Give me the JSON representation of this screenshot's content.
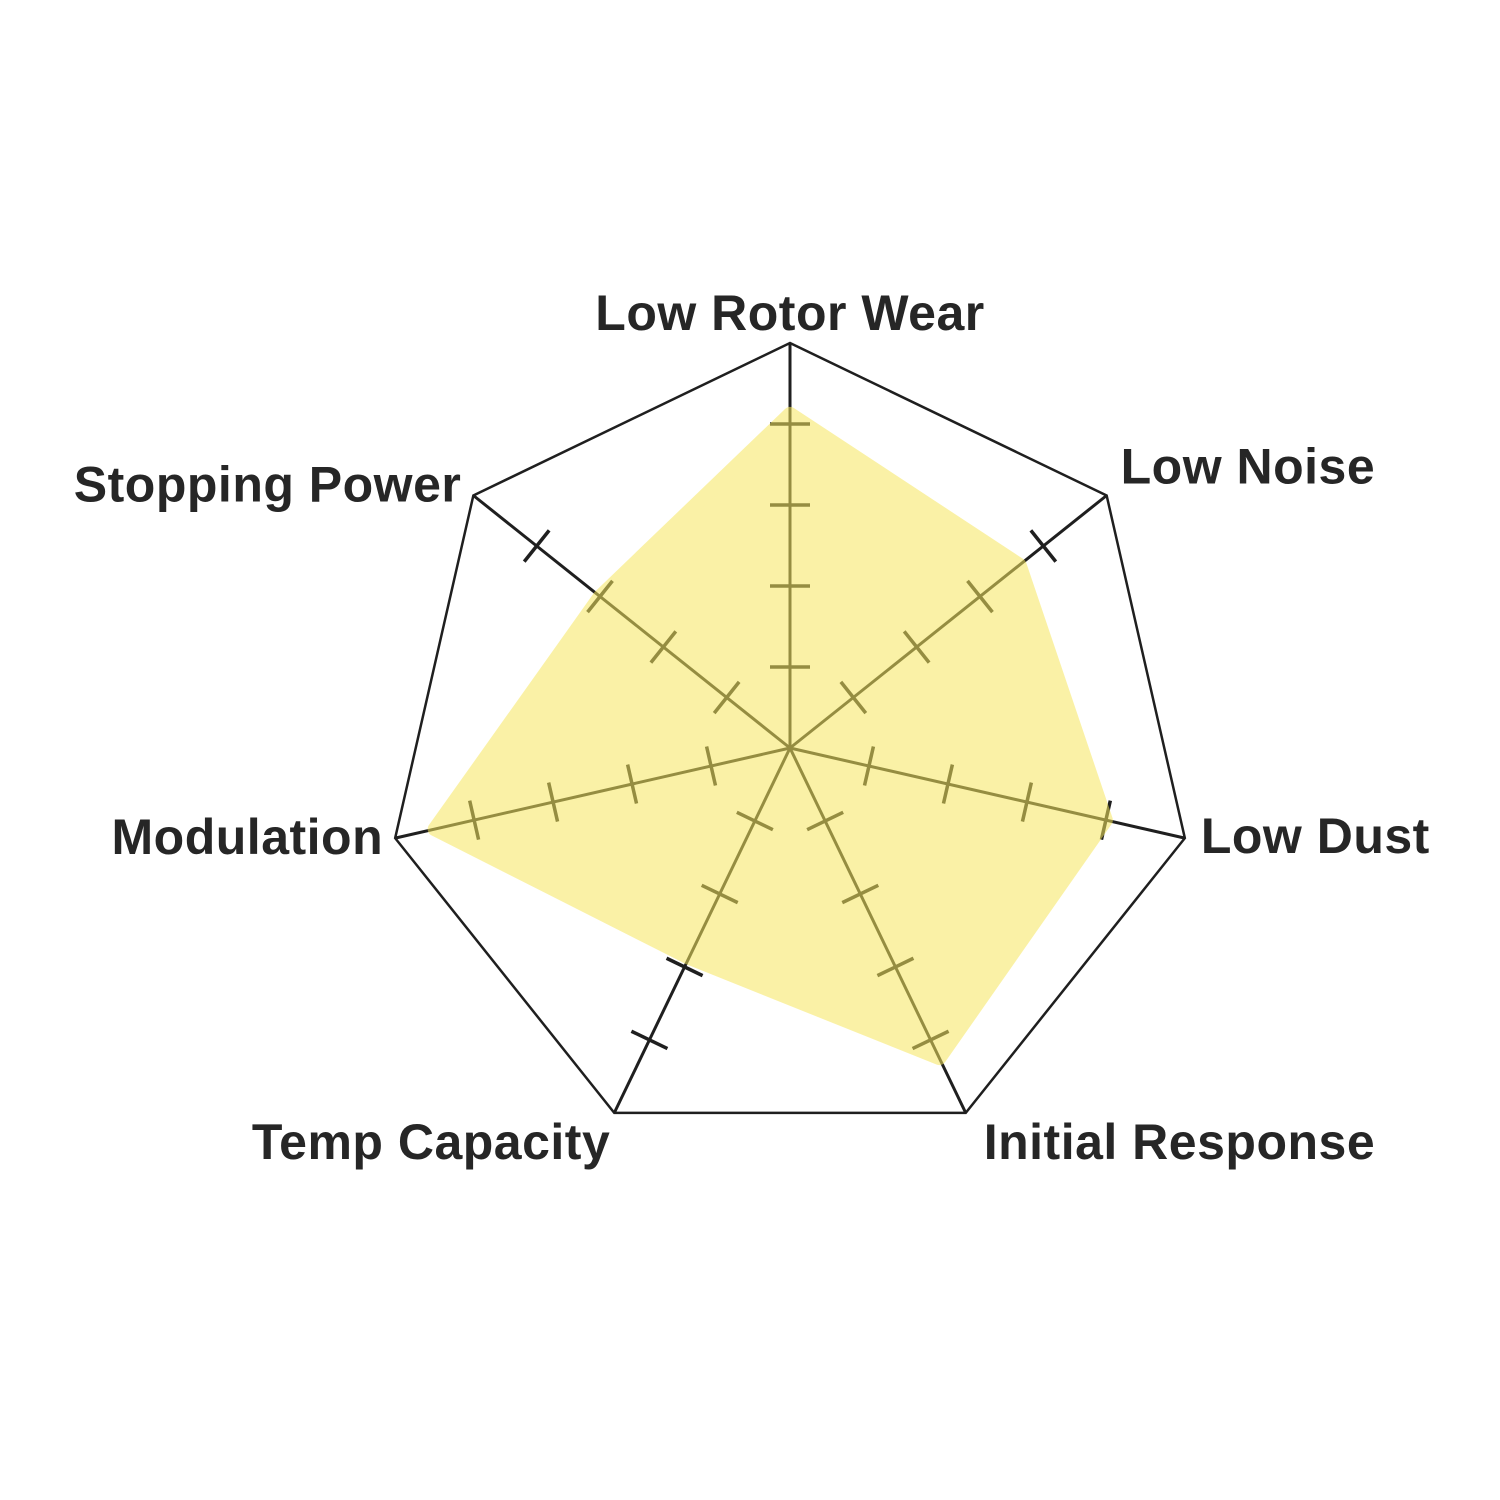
{
  "page": {
    "background_color": "#ffffff",
    "title": ""
  },
  "chart_data": {
    "type": "radar",
    "title": "",
    "categories": [
      "Low Rotor Wear",
      "Low Noise",
      "Low Dust",
      "Initial Response",
      "Temp Capacity",
      "Modulation",
      "Stopping Power"
    ],
    "values": [
      8.25,
      7.25,
      8.0,
      8.5,
      5.75,
      9.0,
      6.0
    ],
    "scale": {
      "min": 0,
      "max": 10,
      "tick_marks_at": [
        2,
        4,
        6,
        8
      ],
      "outer_ring_at": 10
    },
    "layout_hints": {
      "start_axis": "top",
      "direction": "clockwise",
      "axes_count": 7,
      "grid": "outer heptagon outline + radial spokes with tick marks, no inner rings",
      "legend": "none"
    },
    "colors": {
      "fill": "#F7E75E",
      "fill_opacity": 0.55,
      "grid_line": "#1f1f1f",
      "label_text": "#262626"
    }
  }
}
